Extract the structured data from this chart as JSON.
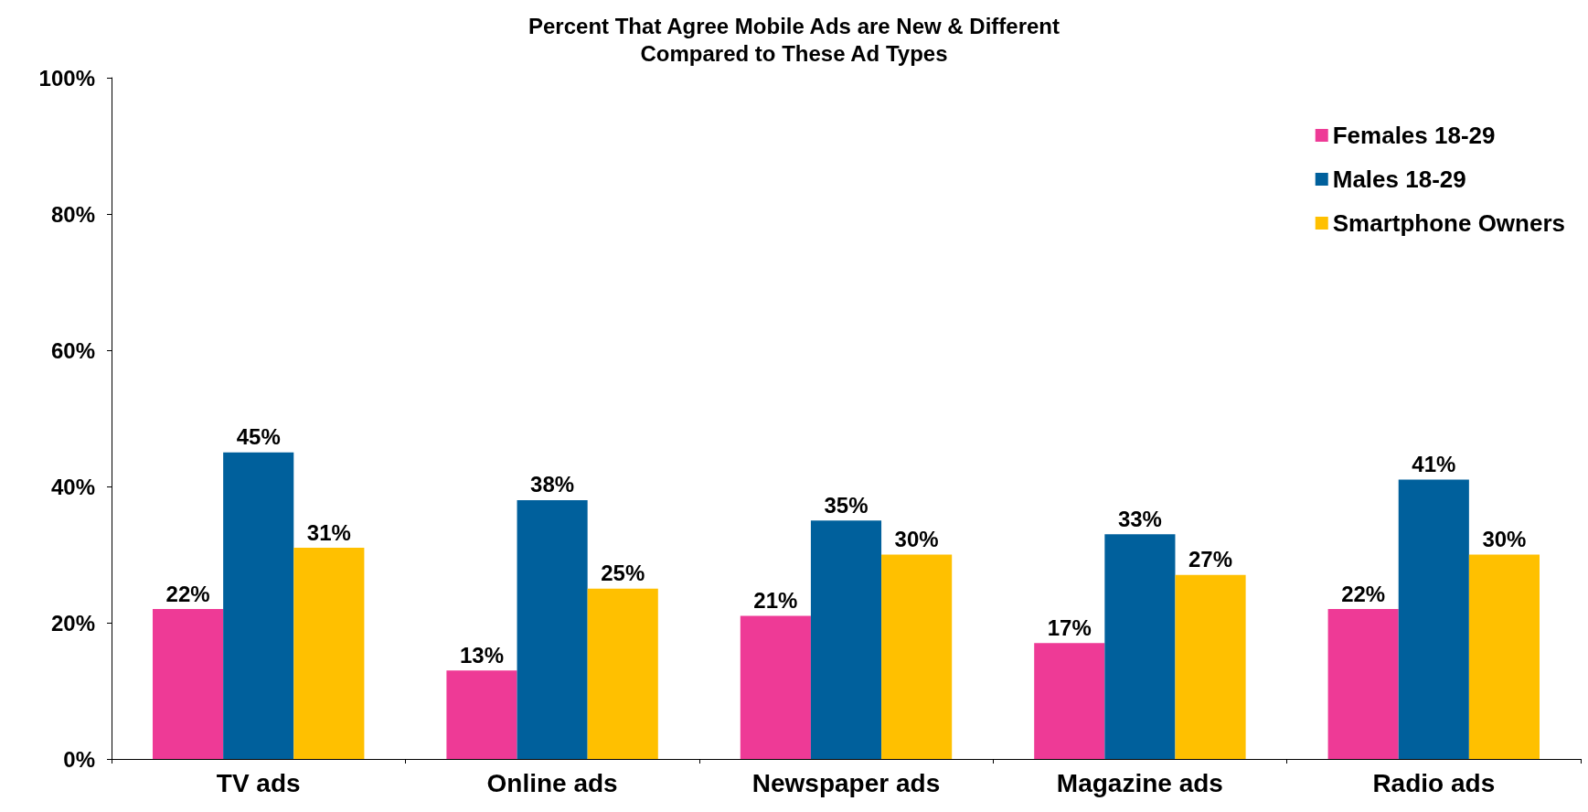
{
  "chart_data": {
    "type": "bar",
    "title": "Percent That Agree Mobile Ads are New & Different\nCompared to These Ad Types",
    "categories": [
      "TV ads",
      "Online ads",
      "Newspaper ads",
      "Magazine ads",
      "Radio ads"
    ],
    "series": [
      {
        "name": "Females 18-29",
        "color": "#ee3a96",
        "values": [
          22,
          13,
          21,
          17,
          22
        ],
        "value_labels": [
          "22%",
          "13%",
          "21%",
          "17%",
          "22%"
        ]
      },
      {
        "name": "Males 18-29",
        "color": "#00609c",
        "values": [
          45,
          38,
          35,
          33,
          41
        ],
        "value_labels": [
          "45%",
          "38%",
          "35%",
          "33%",
          "41%"
        ]
      },
      {
        "name": "Smartphone Owners",
        "color": "#ffc000",
        "values": [
          31,
          25,
          30,
          27,
          30
        ],
        "value_labels": [
          "31%",
          "25%",
          "30%",
          "27%",
          "30%"
        ]
      }
    ],
    "ylim": [
      0,
      100
    ],
    "yticks": [
      {
        "value": 0,
        "label": "0%"
      },
      {
        "value": 20,
        "label": "20%"
      },
      {
        "value": 40,
        "label": "40%"
      },
      {
        "value": 60,
        "label": "60%"
      },
      {
        "value": 80,
        "label": "80%"
      },
      {
        "value": 100,
        "label": "100%"
      }
    ],
    "grid": false,
    "legend": "top right"
  }
}
